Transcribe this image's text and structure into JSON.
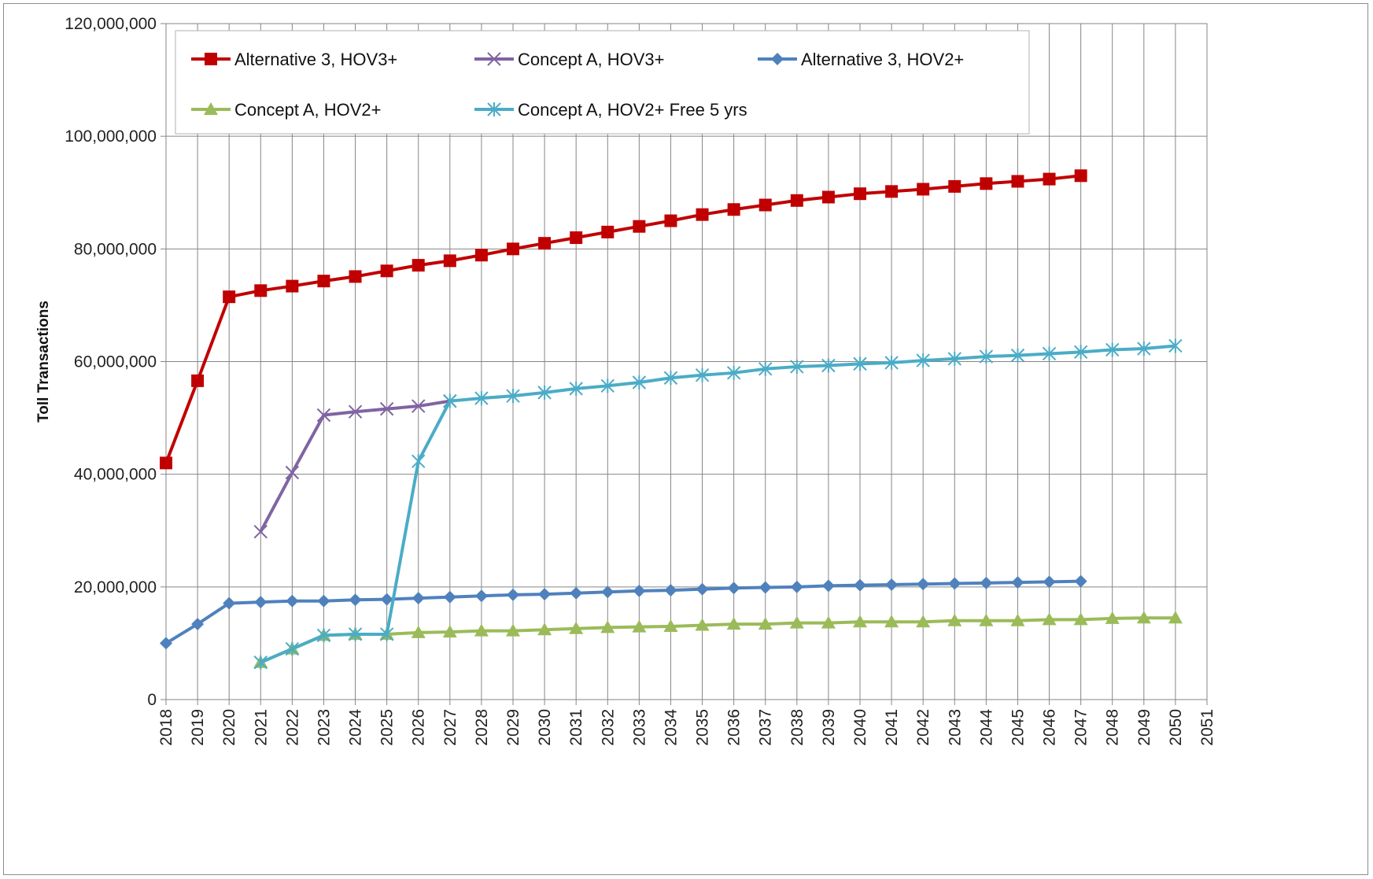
{
  "chart_data": {
    "type": "line",
    "title": "",
    "xlabel": "",
    "ylabel": "Toll Transactions",
    "ylim": [
      0,
      120000000
    ],
    "y_ticks": [
      "0",
      "20,000,000",
      "40,000,000",
      "60,000,000",
      "80,000,000",
      "100,000,000",
      "120,000,000"
    ],
    "y_tick_values": [
      0,
      20000000,
      40000000,
      60000000,
      80000000,
      100000000,
      120000000
    ],
    "x_categories": [
      "2018",
      "2019",
      "2020",
      "2021",
      "2022",
      "2023",
      "2024",
      "2025",
      "2026",
      "2027",
      "2028",
      "2029",
      "2030",
      "2031",
      "2032",
      "2033",
      "2034",
      "2035",
      "2036",
      "2037",
      "2038",
      "2039",
      "2040",
      "2041",
      "2042",
      "2043",
      "2044",
      "2045",
      "2046",
      "2047",
      "2048",
      "2049",
      "2050",
      "2051"
    ],
    "grid": true,
    "legend_position": "top",
    "series": [
      {
        "name": "Alternative 3, HOV3+",
        "color": "#C00000",
        "marker": "square",
        "x": [
          "2018",
          "2019",
          "2020",
          "2021",
          "2022",
          "2023",
          "2024",
          "2025",
          "2026",
          "2027",
          "2028",
          "2029",
          "2030",
          "2031",
          "2032",
          "2033",
          "2034",
          "2035",
          "2036",
          "2037",
          "2038",
          "2039",
          "2040",
          "2041",
          "2042",
          "2043",
          "2044",
          "2045",
          "2046",
          "2047"
        ],
        "values": [
          42000000,
          56600000,
          71500000,
          72600000,
          73400000,
          74300000,
          75100000,
          76100000,
          77100000,
          77900000,
          78900000,
          80000000,
          81000000,
          82000000,
          83000000,
          84000000,
          85000000,
          86100000,
          87000000,
          87800000,
          88600000,
          89200000,
          89800000,
          90200000,
          90600000,
          91100000,
          91600000,
          92000000,
          92400000,
          93000000
        ]
      },
      {
        "name": "Concept A, HOV3+",
        "color": "#8064A2",
        "marker": "x",
        "x": [
          "2021",
          "2022",
          "2023",
          "2024",
          "2025",
          "2026",
          "2027"
        ],
        "values": [
          29800000,
          40300000,
          50500000,
          51100000,
          51600000,
          52100000,
          53000000
        ]
      },
      {
        "name": "Alternative 3, HOV2+",
        "color": "#4F81BD",
        "marker": "diamond",
        "x": [
          "2018",
          "2019",
          "2020",
          "2021",
          "2022",
          "2023",
          "2024",
          "2025",
          "2026",
          "2027",
          "2028",
          "2029",
          "2030",
          "2031",
          "2032",
          "2033",
          "2034",
          "2035",
          "2036",
          "2037",
          "2038",
          "2039",
          "2040",
          "2041",
          "2042",
          "2043",
          "2044",
          "2045",
          "2046",
          "2047"
        ],
        "values": [
          10000000,
          13400000,
          17100000,
          17300000,
          17500000,
          17500000,
          17700000,
          17800000,
          18000000,
          18200000,
          18400000,
          18600000,
          18700000,
          18900000,
          19100000,
          19300000,
          19400000,
          19600000,
          19800000,
          19900000,
          20000000,
          20200000,
          20300000,
          20400000,
          20500000,
          20600000,
          20700000,
          20800000,
          20900000,
          21000000
        ]
      },
      {
        "name": "Concept A, HOV2+",
        "color": "#9BBB59",
        "marker": "triangle",
        "x": [
          "2021",
          "2022",
          "2023",
          "2024",
          "2025",
          "2026",
          "2027",
          "2028",
          "2029",
          "2030",
          "2031",
          "2032",
          "2033",
          "2034",
          "2035",
          "2036",
          "2037",
          "2038",
          "2039",
          "2040",
          "2041",
          "2042",
          "2043",
          "2044",
          "2045",
          "2046",
          "2047",
          "2048",
          "2049",
          "2050"
        ],
        "values": [
          6600000,
          9000000,
          11400000,
          11600000,
          11600000,
          11900000,
          12000000,
          12200000,
          12200000,
          12400000,
          12600000,
          12800000,
          12900000,
          13000000,
          13200000,
          13400000,
          13400000,
          13600000,
          13600000,
          13800000,
          13800000,
          13800000,
          14000000,
          14000000,
          14000000,
          14200000,
          14200000,
          14400000,
          14500000,
          14500000
        ]
      },
      {
        "name": "Concept A, HOV2+ Free 5 yrs",
        "color": "#4BACC6",
        "marker": "star",
        "x": [
          "2021",
          "2022",
          "2023",
          "2024",
          "2025",
          "2026",
          "2027",
          "2028",
          "2029",
          "2030",
          "2031",
          "2032",
          "2033",
          "2034",
          "2035",
          "2036",
          "2037",
          "2038",
          "2039",
          "2040",
          "2041",
          "2042",
          "2043",
          "2044",
          "2045",
          "2046",
          "2047",
          "2048",
          "2049",
          "2050"
        ],
        "values": [
          6600000,
          9000000,
          11400000,
          11600000,
          11600000,
          42300000,
          53000000,
          53500000,
          53900000,
          54500000,
          55200000,
          55700000,
          56300000,
          57100000,
          57600000,
          58000000,
          58700000,
          59100000,
          59300000,
          59600000,
          59800000,
          60200000,
          60500000,
          60900000,
          61100000,
          61400000,
          61700000,
          62100000,
          62300000,
          62800000
        ]
      }
    ]
  }
}
